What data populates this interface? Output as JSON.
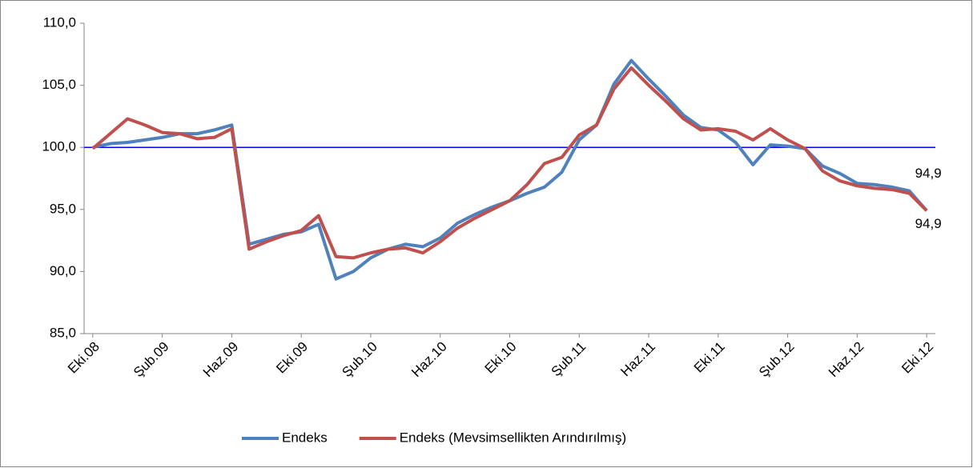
{
  "chart_data": {
    "type": "line",
    "categories": [
      "Eki.08",
      null,
      null,
      null,
      "Şub.09",
      null,
      null,
      null,
      "Haz.09",
      null,
      null,
      null,
      "Eki.09",
      null,
      null,
      null,
      "Şub.10",
      null,
      null,
      null,
      "Haz.10",
      null,
      null,
      null,
      "Eki.10",
      null,
      null,
      null,
      "Şub.11",
      null,
      null,
      null,
      "Haz.11",
      null,
      null,
      null,
      "Eki.11",
      null,
      null,
      null,
      "Şub.12",
      null,
      null,
      null,
      "Haz.12",
      null,
      null,
      null,
      "Eki.12"
    ],
    "series": [
      {
        "name": "Endeks",
        "color": "#4f81bd",
        "values": [
          100.0,
          100.3,
          100.4,
          100.6,
          100.8,
          101.1,
          101.1,
          101.4,
          101.8,
          92.2,
          92.6,
          93.0,
          93.2,
          93.8,
          89.4,
          90.0,
          91.1,
          91.8,
          92.2,
          92.0,
          92.7,
          93.9,
          94.6,
          95.2,
          95.7,
          96.3,
          96.8,
          98.0,
          100.6,
          101.8,
          105.1,
          107.0,
          105.5,
          104.1,
          102.6,
          101.6,
          101.4,
          100.4,
          98.6,
          100.2,
          100.1,
          99.9,
          98.5,
          97.9,
          97.1,
          97.0,
          96.8,
          96.5,
          94.9
        ],
        "value_labels": [
          null,
          null,
          null,
          null,
          null,
          null,
          null,
          null,
          null,
          null,
          null,
          null,
          null,
          null,
          null,
          null,
          null,
          null,
          null,
          null,
          null,
          null,
          null,
          null,
          null,
          null,
          null,
          null,
          null,
          null,
          null,
          null,
          null,
          null,
          null,
          null,
          null,
          null,
          null,
          null,
          null,
          null,
          null,
          null,
          null,
          null,
          null,
          null,
          "94,9"
        ]
      },
      {
        "name": "Endeks (Mevsimsellikten Arındırılmış)",
        "color": "#c0504d",
        "values": [
          99.9,
          101.1,
          102.3,
          101.8,
          101.2,
          101.1,
          100.7,
          100.8,
          101.5,
          91.8,
          92.4,
          92.9,
          93.3,
          94.5,
          91.2,
          91.1,
          91.5,
          91.8,
          91.9,
          91.5,
          92.4,
          93.5,
          94.3,
          95.0,
          95.7,
          97.0,
          98.7,
          99.2,
          101.0,
          101.8,
          104.7,
          106.4,
          105.0,
          103.7,
          102.3,
          101.4,
          101.5,
          101.3,
          100.6,
          101.5,
          100.6,
          99.9,
          98.1,
          97.3,
          96.9,
          96.7,
          96.6,
          96.3,
          94.9
        ],
        "value_labels": [
          null,
          null,
          null,
          null,
          null,
          null,
          null,
          null,
          null,
          null,
          null,
          null,
          null,
          null,
          null,
          null,
          null,
          null,
          null,
          null,
          null,
          null,
          null,
          null,
          null,
          null,
          null,
          null,
          null,
          null,
          null,
          null,
          null,
          null,
          null,
          null,
          null,
          null,
          null,
          null,
          null,
          null,
          null,
          null,
          null,
          null,
          null,
          null,
          "94,9"
        ]
      }
    ],
    "ylim": [
      85,
      110
    ],
    "yticks": [
      {
        "value": 85,
        "label": "85,0"
      },
      {
        "value": 90,
        "label": "90,0"
      },
      {
        "value": 95,
        "label": "95,0"
      },
      {
        "value": 100,
        "label": "100,0"
      },
      {
        "value": 105,
        "label": "105,0"
      },
      {
        "value": 110,
        "label": "110,0"
      }
    ],
    "reference_line": {
      "value": 100,
      "color": "#0000ff"
    },
    "grid": false,
    "legend": "bottom"
  }
}
